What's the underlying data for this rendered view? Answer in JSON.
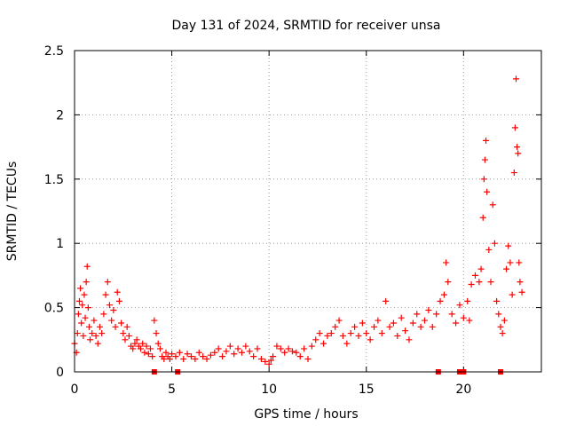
{
  "chart_data": {
    "type": "scatter",
    "title": "Day 131 of 2024, SRMTID for receiver unsa",
    "xlabel": "GPS time / hours",
    "ylabel": "SRMTID / TECUs",
    "xlim": [
      0,
      24
    ],
    "ylim": [
      0,
      2.5
    ],
    "x_ticks": [
      0,
      5,
      10,
      15,
      20
    ],
    "y_ticks": [
      0,
      0.5,
      1,
      1.5,
      2,
      2.5
    ],
    "x_tick_labels": [
      "0",
      "5",
      "10",
      "15",
      "20"
    ],
    "y_tick_labels": [
      "0",
      "0.5",
      "1",
      "1.5",
      "2",
      "2.5"
    ],
    "grid": true,
    "marker": "+",
    "color": "#ff0000",
    "series": [
      {
        "name": "SRMTID",
        "points": [
          [
            0.0,
            0.22
          ],
          [
            0.1,
            0.15
          ],
          [
            0.15,
            0.3
          ],
          [
            0.2,
            0.45
          ],
          [
            0.25,
            0.55
          ],
          [
            0.3,
            0.65
          ],
          [
            0.35,
            0.38
          ],
          [
            0.4,
            0.52
          ],
          [
            0.45,
            0.28
          ],
          [
            0.5,
            0.6
          ],
          [
            0.55,
            0.42
          ],
          [
            0.6,
            0.7
          ],
          [
            0.65,
            0.82
          ],
          [
            0.7,
            0.5
          ],
          [
            0.75,
            0.35
          ],
          [
            0.8,
            0.25
          ],
          [
            0.9,
            0.3
          ],
          [
            1.0,
            0.4
          ],
          [
            1.1,
            0.28
          ],
          [
            1.2,
            0.22
          ],
          [
            1.3,
            0.35
          ],
          [
            1.4,
            0.3
          ],
          [
            1.5,
            0.45
          ],
          [
            1.6,
            0.6
          ],
          [
            1.7,
            0.7
          ],
          [
            1.8,
            0.52
          ],
          [
            1.9,
            0.4
          ],
          [
            2.0,
            0.48
          ],
          [
            2.1,
            0.35
          ],
          [
            2.2,
            0.62
          ],
          [
            2.3,
            0.55
          ],
          [
            2.4,
            0.38
          ],
          [
            2.5,
            0.3
          ],
          [
            2.6,
            0.25
          ],
          [
            2.7,
            0.35
          ],
          [
            2.8,
            0.28
          ],
          [
            2.9,
            0.2
          ],
          [
            3.0,
            0.18
          ],
          [
            3.1,
            0.22
          ],
          [
            3.2,
            0.25
          ],
          [
            3.3,
            0.2
          ],
          [
            3.4,
            0.18
          ],
          [
            3.5,
            0.22
          ],
          [
            3.6,
            0.15
          ],
          [
            3.7,
            0.2
          ],
          [
            3.8,
            0.14
          ],
          [
            3.9,
            0.18
          ],
          [
            4.0,
            0.12
          ],
          [
            4.1,
            0.4
          ],
          [
            4.2,
            0.3
          ],
          [
            4.3,
            0.22
          ],
          [
            4.4,
            0.18
          ],
          [
            4.5,
            0.12
          ],
          [
            4.6,
            0.1
          ],
          [
            4.7,
            0.15
          ],
          [
            4.8,
            0.12
          ],
          [
            4.9,
            0.1
          ],
          [
            5.0,
            0.14
          ],
          [
            5.2,
            0.12
          ],
          [
            5.4,
            0.15
          ],
          [
            5.6,
            0.1
          ],
          [
            5.8,
            0.14
          ],
          [
            6.0,
            0.12
          ],
          [
            6.2,
            0.1
          ],
          [
            6.4,
            0.15
          ],
          [
            6.6,
            0.12
          ],
          [
            6.8,
            0.1
          ],
          [
            7.0,
            0.13
          ],
          [
            7.2,
            0.15
          ],
          [
            7.4,
            0.18
          ],
          [
            7.6,
            0.12
          ],
          [
            7.8,
            0.16
          ],
          [
            8.0,
            0.2
          ],
          [
            8.2,
            0.14
          ],
          [
            8.4,
            0.18
          ],
          [
            8.6,
            0.15
          ],
          [
            8.8,
            0.2
          ],
          [
            9.0,
            0.16
          ],
          [
            9.2,
            0.12
          ],
          [
            9.4,
            0.18
          ],
          [
            9.6,
            0.1
          ],
          [
            9.8,
            0.08
          ],
          [
            10.0,
            0.06
          ],
          [
            10.1,
            0.09
          ],
          [
            10.2,
            0.12
          ],
          [
            10.4,
            0.2
          ],
          [
            10.6,
            0.18
          ],
          [
            10.8,
            0.15
          ],
          [
            11.0,
            0.18
          ],
          [
            11.2,
            0.16
          ],
          [
            11.4,
            0.15
          ],
          [
            11.6,
            0.12
          ],
          [
            11.8,
            0.18
          ],
          [
            12.0,
            0.1
          ],
          [
            12.2,
            0.2
          ],
          [
            12.4,
            0.25
          ],
          [
            12.6,
            0.3
          ],
          [
            12.8,
            0.22
          ],
          [
            13.0,
            0.28
          ],
          [
            13.2,
            0.3
          ],
          [
            13.4,
            0.35
          ],
          [
            13.6,
            0.4
          ],
          [
            13.8,
            0.28
          ],
          [
            14.0,
            0.22
          ],
          [
            14.2,
            0.3
          ],
          [
            14.4,
            0.35
          ],
          [
            14.6,
            0.28
          ],
          [
            14.8,
            0.38
          ],
          [
            15.0,
            0.3
          ],
          [
            15.2,
            0.25
          ],
          [
            15.4,
            0.35
          ],
          [
            15.6,
            0.4
          ],
          [
            15.8,
            0.3
          ],
          [
            16.0,
            0.55
          ],
          [
            16.2,
            0.35
          ],
          [
            16.4,
            0.38
          ],
          [
            16.6,
            0.28
          ],
          [
            16.8,
            0.42
          ],
          [
            17.0,
            0.32
          ],
          [
            17.2,
            0.25
          ],
          [
            17.4,
            0.38
          ],
          [
            17.6,
            0.45
          ],
          [
            17.8,
            0.35
          ],
          [
            18.0,
            0.4
          ],
          [
            18.2,
            0.48
          ],
          [
            18.4,
            0.35
          ],
          [
            18.6,
            0.45
          ],
          [
            18.8,
            0.55
          ],
          [
            19.0,
            0.6
          ],
          [
            19.1,
            0.85
          ],
          [
            19.2,
            0.7
          ],
          [
            19.4,
            0.45
          ],
          [
            19.6,
            0.38
          ],
          [
            19.8,
            0.52
          ],
          [
            20.0,
            0.42
          ],
          [
            20.2,
            0.55
          ],
          [
            20.3,
            0.4
          ],
          [
            20.4,
            0.68
          ],
          [
            20.6,
            0.75
          ],
          [
            20.8,
            0.7
          ],
          [
            20.9,
            0.8
          ],
          [
            21.0,
            1.2
          ],
          [
            21.05,
            1.5
          ],
          [
            21.1,
            1.65
          ],
          [
            21.15,
            1.8
          ],
          [
            21.2,
            1.4
          ],
          [
            21.3,
            0.95
          ],
          [
            21.4,
            0.7
          ],
          [
            21.5,
            1.3
          ],
          [
            21.6,
            1.0
          ],
          [
            21.7,
            0.55
          ],
          [
            21.8,
            0.45
          ],
          [
            21.9,
            0.35
          ],
          [
            22.0,
            0.3
          ],
          [
            22.1,
            0.4
          ],
          [
            22.2,
            0.8
          ],
          [
            22.3,
            0.98
          ],
          [
            22.4,
            0.85
          ],
          [
            22.5,
            0.6
          ],
          [
            22.6,
            1.55
          ],
          [
            22.65,
            1.9
          ],
          [
            22.7,
            2.28
          ],
          [
            22.75,
            1.75
          ],
          [
            22.8,
            1.7
          ],
          [
            22.85,
            0.85
          ],
          [
            22.9,
            0.7
          ],
          [
            23.0,
            0.62
          ]
        ]
      }
    ],
    "baseline_marks_x": [
      4.1,
      5.3,
      18.7,
      19.8,
      20.0,
      21.9
    ]
  }
}
